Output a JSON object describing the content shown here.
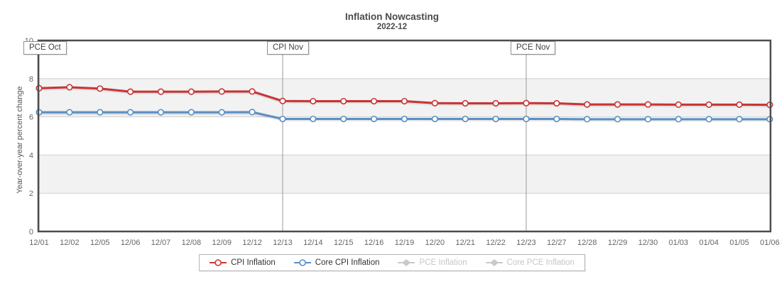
{
  "header": {
    "title": "Inflation Nowcasting",
    "subtitle": "2022-12"
  },
  "chart_data": {
    "type": "line",
    "title": "Inflation Nowcasting",
    "subtitle": "2022-12",
    "xlabel": "",
    "ylabel": "Year-over-year percent change",
    "ylim": [
      0,
      10
    ],
    "yticks": [
      0,
      2,
      4,
      6,
      8,
      10
    ],
    "band_pairs": [
      [
        6,
        8
      ],
      [
        2,
        4
      ]
    ],
    "legend_position": "bottom",
    "categories": [
      "12/01",
      "12/02",
      "12/05",
      "12/06",
      "12/07",
      "12/08",
      "12/09",
      "12/12",
      "12/13",
      "12/14",
      "12/15",
      "12/16",
      "12/19",
      "12/20",
      "12/21",
      "12/22",
      "12/23",
      "12/27",
      "12/28",
      "12/29",
      "12/30",
      "01/03",
      "01/04",
      "01/05",
      "01/06"
    ],
    "series": [
      {
        "name": "CPI Inflation",
        "color": "#cb3335",
        "enabled": true,
        "values": [
          7.5,
          7.55,
          7.48,
          7.32,
          7.32,
          7.32,
          7.33,
          7.33,
          6.83,
          6.82,
          6.82,
          6.82,
          6.82,
          6.72,
          6.71,
          6.71,
          6.72,
          6.71,
          6.65,
          6.65,
          6.65,
          6.64,
          6.64,
          6.64,
          6.63
        ]
      },
      {
        "name": "Core CPI Inflation",
        "color": "#5a8fc6",
        "enabled": true,
        "values": [
          6.24,
          6.24,
          6.24,
          6.24,
          6.24,
          6.24,
          6.24,
          6.25,
          5.89,
          5.89,
          5.89,
          5.89,
          5.89,
          5.89,
          5.89,
          5.89,
          5.89,
          5.89,
          5.88,
          5.88,
          5.88,
          5.88,
          5.88,
          5.88,
          5.88
        ]
      },
      {
        "name": "PCE Inflation",
        "color": "#c9c9c9",
        "enabled": false,
        "values": []
      },
      {
        "name": "Core PCE Inflation",
        "color": "#c9c9c9",
        "enabled": false,
        "values": []
      }
    ],
    "annotations": [
      {
        "label": "PCE Oct",
        "category": "12/01"
      },
      {
        "label": "CPI Nov",
        "category": "12/13"
      },
      {
        "label": "PCE Nov",
        "category": "12/23"
      }
    ]
  },
  "colors": {
    "band": "#f2f2f2",
    "gridline": "#cfcfcf",
    "border": "#4d4d4d",
    "tick_text": "#666666",
    "annotation_line": "#999999"
  }
}
